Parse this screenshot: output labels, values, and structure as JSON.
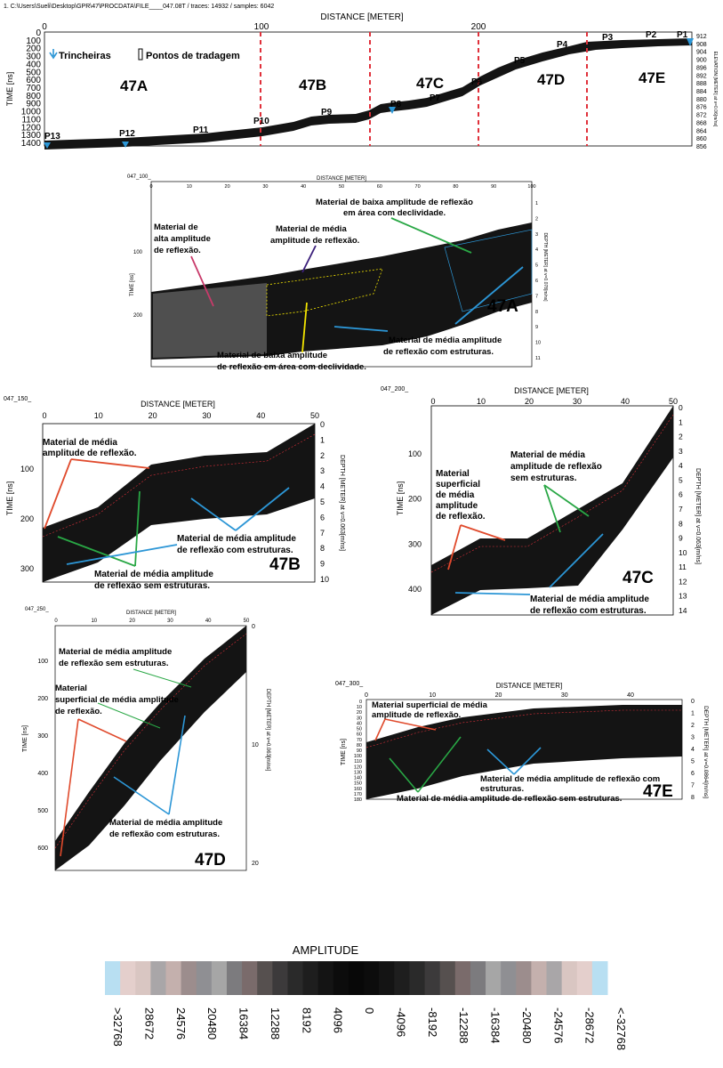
{
  "header": {
    "path": "1. C:\\Users\\Sueli\\Desktop\\GPR\\47\\PROCDATA\\FILE____047.08T  /  traces: 14932  /  samples: 6042"
  },
  "colors": {
    "radar_fill": "#141414",
    "red_dash": "#e0303a",
    "blue": "#2c96d6",
    "green": "#29a745",
    "red_arrow": "#e04a2c",
    "yellow": "#f2e400",
    "purple": "#3a1e7a",
    "pink": "#c83a6a"
  },
  "profile": {
    "x_title": "DISTANCE [METER]",
    "x_ticks": [
      "0",
      "100",
      "200"
    ],
    "y_title": "TIME [ns]",
    "y_ticks": [
      "0",
      "100",
      "200",
      "300",
      "400",
      "500",
      "600",
      "700",
      "800",
      "900",
      "1000",
      "1100",
      "1200",
      "1300",
      "1400"
    ],
    "elev_title": "ELEVATION [METER] at v=0.06[m/ns]",
    "elev_ticks": [
      "912",
      "908",
      "904",
      "900",
      "896",
      "892",
      "888",
      "884",
      "880",
      "876",
      "872",
      "868",
      "864",
      "860",
      "856"
    ],
    "legend_trench": "Trincheiras",
    "legend_auger": "Pontos de tradagem",
    "sections": [
      "47A",
      "47B",
      "47C",
      "47D",
      "47E"
    ],
    "points": [
      "P1",
      "P2",
      "P3",
      "P4",
      "P5",
      "P6",
      "P7",
      "P8",
      "P9",
      "P10",
      "P11",
      "P12",
      "P13"
    ]
  },
  "p47a": {
    "file": "047_100_",
    "x_title": "DISTANCE [METER]",
    "x_ticks": [
      "0",
      "10",
      "20",
      "30",
      "40",
      "50",
      "60",
      "70",
      "80",
      "90",
      "100"
    ],
    "y_title": "TIME [ns]",
    "y_ticks": [
      "100",
      "200"
    ],
    "depth_title": "DEPTH [METER] at v=0.078[m/ns]",
    "depth_ticks": [
      "1",
      "2",
      "3",
      "4",
      "5",
      "6",
      "7",
      "8",
      "9",
      "10",
      "11"
    ],
    "label": "47A",
    "ann_high_1": "Material de",
    "ann_high_2": "alta amplitude",
    "ann_high_3": "de reflexão.",
    "ann_mid_1": "Material de média",
    "ann_mid_2": "amplitude de reflexão.",
    "ann_low_top_1": "Material de baixa amplitude de reflexão",
    "ann_low_top_2": "em área com declividade.",
    "ann_struct_1": "Material de média amplitude",
    "ann_struct_2": "de reflexão com estruturas.",
    "ann_low_bot_1": "Material de baixa amplitude",
    "ann_low_bot_2": "de reflexão em área com declividade."
  },
  "p47b": {
    "file": "047_150_",
    "x_title": "DISTANCE [METER]",
    "x_ticks": [
      "0",
      "10",
      "20",
      "30",
      "40",
      "50"
    ],
    "y_title": "TIME [ns]",
    "y_ticks": [
      "100",
      "200",
      "300"
    ],
    "depth_title": "DEPTH [METER] at v=0.063[m/ns]",
    "depth_ticks": [
      "0",
      "1",
      "2",
      "3",
      "4",
      "5",
      "6",
      "7",
      "8",
      "9",
      "10"
    ],
    "label": "47B",
    "ann_mid_1": "Material de média",
    "ann_mid_2": "amplitude de reflexão.",
    "ann_struct_1": "Material de média amplitude",
    "ann_struct_2": "de reflexão com estruturas.",
    "ann_nostruct_1": "Material de média amplitude",
    "ann_nostruct_2": "de reflexão sem estruturas."
  },
  "p47c": {
    "file": "047_200_",
    "x_title": "DISTANCE [METER]",
    "x_ticks": [
      "0",
      "10",
      "20",
      "30",
      "40",
      "50"
    ],
    "y_title": "TIME [ns]",
    "y_ticks": [
      "100",
      "200",
      "300",
      "400"
    ],
    "depth_title": "DEPTH [METER] at v=0.063[m/ns]",
    "depth_ticks": [
      "0",
      "1",
      "2",
      "3",
      "4",
      "5",
      "6",
      "7",
      "8",
      "9",
      "10",
      "11",
      "12",
      "13",
      "14"
    ],
    "label": "47C",
    "ann_surf_1": "Material",
    "ann_surf_2": "superficial",
    "ann_surf_3": "de média",
    "ann_surf_4": "amplitude",
    "ann_surf_5": "de reflexão.",
    "ann_nostruct_1": "Material de média",
    "ann_nostruct_2": "amplitude de reflexão",
    "ann_nostruct_3": "sem estruturas.",
    "ann_struct_1": "Material de média amplitude",
    "ann_struct_2": "de reflexão com estruturas."
  },
  "p47d": {
    "file": "047_250_",
    "x_title": "DISTANCE [METER]",
    "x_ticks": [
      "0",
      "10",
      "20",
      "30",
      "40",
      "50"
    ],
    "y_title": "TIME [ns]",
    "y_ticks": [
      "100",
      "200",
      "300",
      "400",
      "500",
      "600"
    ],
    "depth_title": "DEPTH [METER] at v=0.063[m/ns]",
    "depth_ticks": [
      "0",
      "10",
      "20"
    ],
    "label": "47D",
    "ann_nostruct_1": "Material de média amplitude",
    "ann_nostruct_2": "de reflexão sem estruturas.",
    "ann_surf_1": "Material",
    "ann_surf_2": "superficial de média amplitude",
    "ann_surf_3": "de reflexão.",
    "ann_struct_1": "Material de média amplitude",
    "ann_struct_2": "de reflexão com estruturas."
  },
  "p47e": {
    "file": "047_300_",
    "x_title": "DISTANCE [METER]",
    "x_ticks": [
      "0",
      "10",
      "20",
      "30",
      "40"
    ],
    "y_title": "TIME [ns]",
    "y_ticks": [
      "0",
      "10",
      "20",
      "30",
      "40",
      "50",
      "60",
      "70",
      "80",
      "90",
      "100",
      "110",
      "120",
      "130",
      "140",
      "150",
      "160",
      "170",
      "180"
    ],
    "depth_title": "DEPTH [METER] at v=0.0864[m/ns]",
    "depth_ticks": [
      "0",
      "1",
      "2",
      "3",
      "4",
      "5",
      "6",
      "7",
      "8"
    ],
    "label": "47E",
    "ann_surf_1": "Material superficial de média",
    "ann_surf_2": "amplitude de reflexão.",
    "ann_struct_1": "Material de média amplitude de reflexão com",
    "ann_struct_2": "estruturas.",
    "ann_nostruct": "Material de média amplitude de reflexão sem estruturas."
  },
  "amplitude": {
    "title": "AMPLITUDE",
    "ticks": [
      ">32768",
      "28672",
      "24576",
      "20480",
      "16384",
      "12288",
      "8192",
      "4096",
      "0",
      "-4096",
      "-8192",
      "-12288",
      "-16384",
      "-20480",
      "-24576",
      "-28672",
      "<-32768"
    ],
    "swatches": [
      "#b8dff2",
      "#e4cfcc",
      "#d9c6c2",
      "#a9a6a8",
      "#c4b0ad",
      "#9c8d8d",
      "#8f8f93",
      "#a6a6a6",
      "#7c7b7e",
      "#7a6b6b",
      "#56504f",
      "#3c3a3b",
      "#2a2a2a",
      "#1e1e1e",
      "#141414",
      "#0c0c0c",
      "#080808",
      "#0c0c0c",
      "#141414",
      "#1e1e1e",
      "#2a2a2a",
      "#3c3a3b",
      "#56504f",
      "#7a6b6b",
      "#7c7b7e",
      "#a6a6a6",
      "#8f8f93",
      "#9c8d8d",
      "#c4b0ad",
      "#a9a6a8",
      "#d9c6c2",
      "#e4cfcc",
      "#b8dff2"
    ]
  }
}
